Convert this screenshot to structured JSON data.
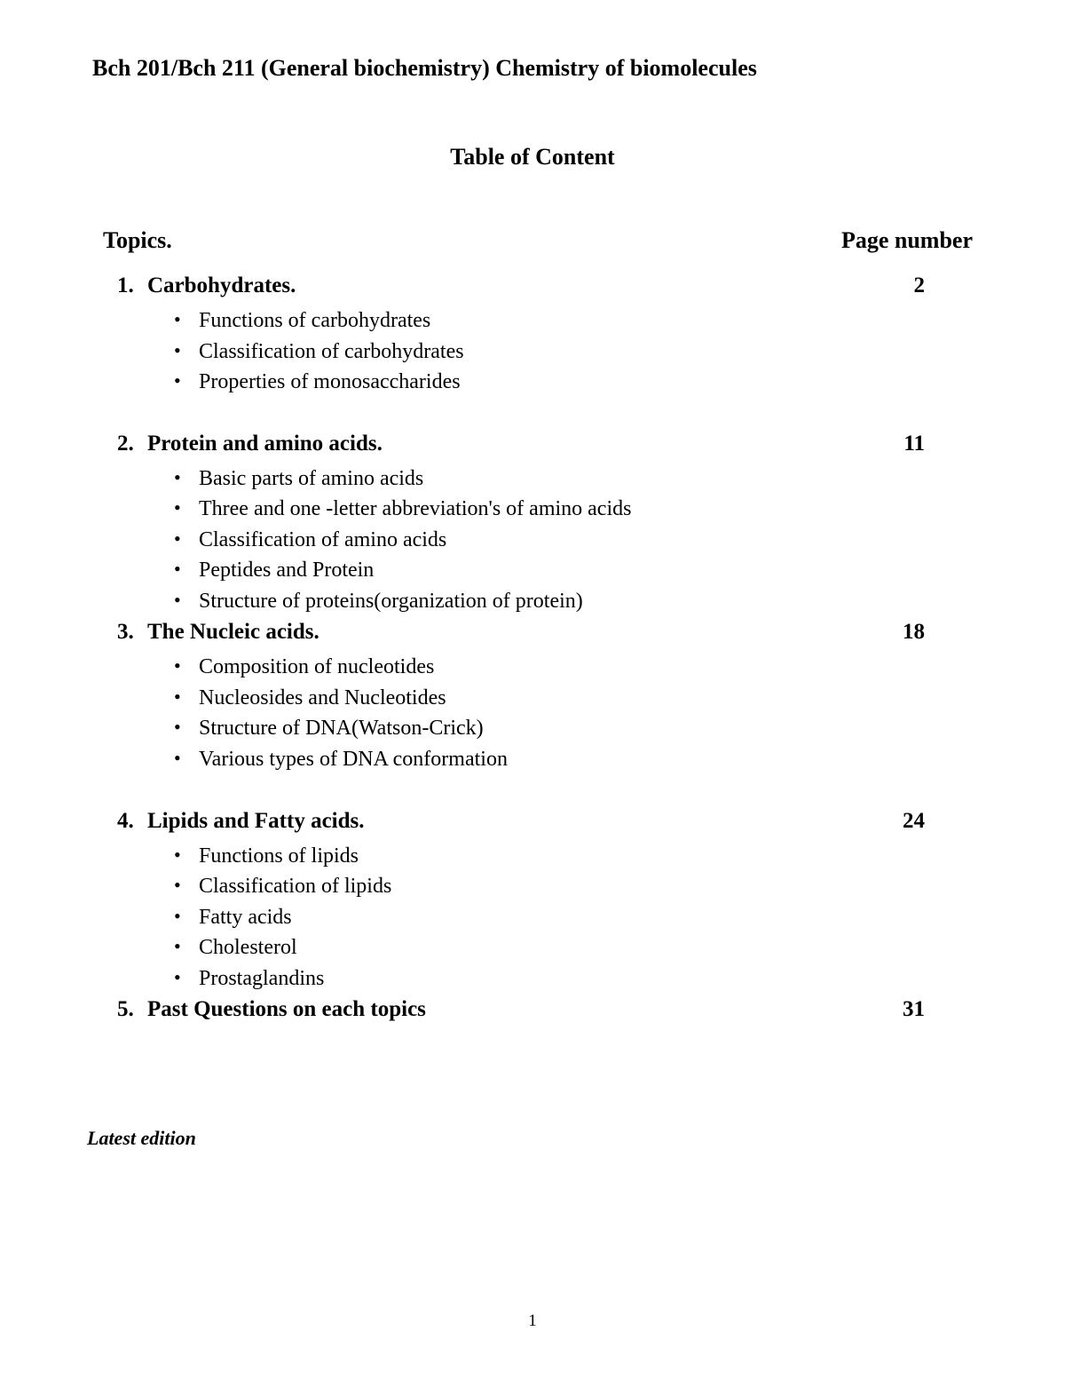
{
  "course_title": "Bch 201/Bch 211 (General biochemistry)  Chemistry of biomolecules",
  "toc_heading": "Table of Content",
  "header": {
    "topics": "Topics.",
    "page": "Page number"
  },
  "sections": [
    {
      "num": "1.",
      "title": "Carbohydrates.",
      "page": "2",
      "subs": [
        "Functions of carbohydrates",
        "Classification of carbohydrates",
        "Properties of monosaccharides"
      ],
      "tight_after": false
    },
    {
      "num": "2.",
      "title": "Protein and amino acids.",
      "page": "11",
      "subs": [
        "Basic parts of amino acids",
        "Three and one -letter abbreviation's of  amino acids",
        "Classification of amino acids",
        "Peptides and Protein",
        "Structure of proteins(organization of protein)"
      ],
      "tight_after": true
    },
    {
      "num": "3.",
      "title": "The Nucleic acids.",
      "page": "18",
      "subs": [
        "Composition of nucleotides",
        "Nucleosides and Nucleotides",
        "Structure of DNA(Watson-Crick)",
        "Various types of DNA conformation"
      ],
      "tight_after": false
    },
    {
      "num": "4.",
      "title": "Lipids and Fatty acids.",
      "page": "24",
      "subs": [
        "Functions of lipids",
        "Classification of lipids",
        "Fatty acids",
        "Cholesterol",
        "Prostaglandins"
      ],
      "tight_after": true
    },
    {
      "num": "5.",
      "title": "Past Questions on each topics",
      "page": "31",
      "subs": [],
      "tight_after": false
    }
  ],
  "footer_note": "Latest edition",
  "page_number": "1",
  "style": {
    "background_color": "#ffffff",
    "text_color": "#000000",
    "font_family": "Times New Roman",
    "title_fontsize": 26,
    "topic_fontsize": 25,
    "sub_fontsize": 24,
    "footer_fontsize": 22,
    "pagenum_fontsize": 19
  }
}
